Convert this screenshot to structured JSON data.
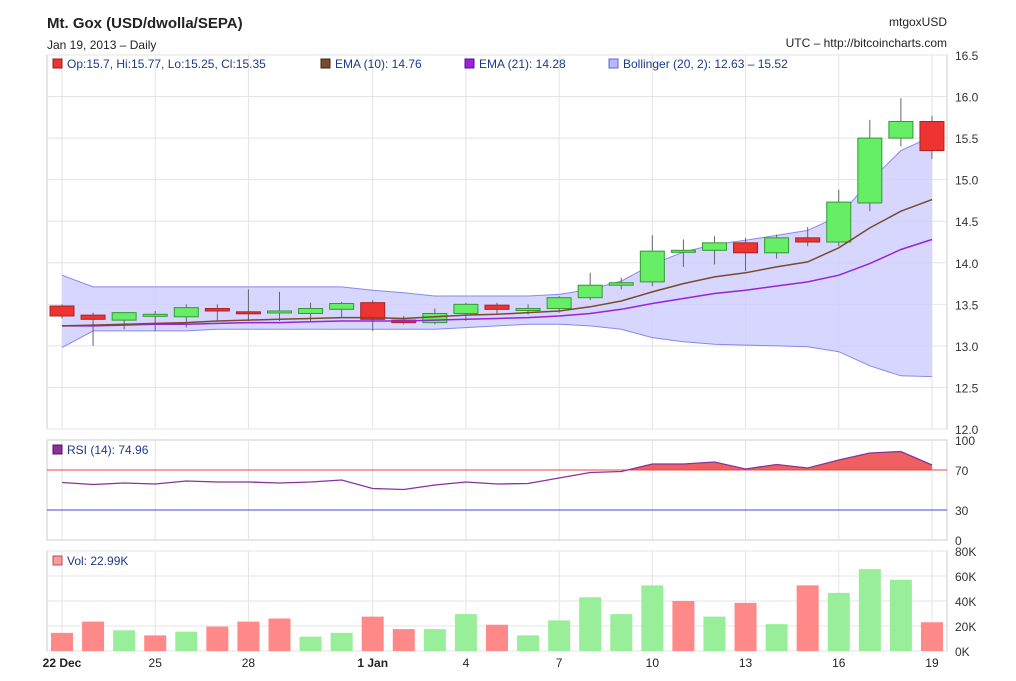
{
  "header": {
    "title": "Mt. Gox (USD/dwolla/SEPA)",
    "subtitle": "Jan 19, 2013 – Daily",
    "symbol": "mtgoxUSD",
    "source": "UTC – http://bitcoincharts.com"
  },
  "colors": {
    "up": "#66ee66",
    "down": "#ee3333",
    "ema10": "#7a4a2a",
    "ema21": "#9922dd",
    "bollinger_fill": "#ccccff",
    "bollinger_line": "#8888ee",
    "rsi_line": "#883399",
    "rsi_fill": "#ee4444",
    "rsi_70": "#ee4444",
    "rsi_30": "#4444dd",
    "vol_up": "#99ee99",
    "vol_down": "#ff8888",
    "grid": "#e4e4e4"
  },
  "chart_data": [
    {
      "type": "candlestick",
      "title": "Mt. Gox (USD/dwolla/SEPA)",
      "ylim": [
        12.0,
        16.5
      ],
      "yticks": [
        "12.0",
        "12.5",
        "13.0",
        "13.5",
        "14.0",
        "14.5",
        "15.0",
        "15.5",
        "16.0",
        "16.5"
      ],
      "x_tick_labels": [
        {
          "index": 0,
          "label": "22 Dec",
          "bold": true
        },
        {
          "index": 3,
          "label": "25",
          "bold": false
        },
        {
          "index": 6,
          "label": "28",
          "bold": false
        },
        {
          "index": 10,
          "label": "1 Jan",
          "bold": true
        },
        {
          "index": 13,
          "label": "4",
          "bold": false
        },
        {
          "index": 16,
          "label": "7",
          "bold": false
        },
        {
          "index": 19,
          "label": "10",
          "bold": false
        },
        {
          "index": 22,
          "label": "13",
          "bold": false
        },
        {
          "index": 25,
          "label": "16",
          "bold": false
        },
        {
          "index": 28,
          "label": "19",
          "bold": false
        }
      ],
      "legend": {
        "ohlc": "Op:15.7, Hi:15.77, Lo:15.25, Cl:15.35",
        "ema10": "EMA (10): 14.76",
        "ema21": "EMA (21): 14.28",
        "bollinger": "Bollinger (20, 2): 12.63 – 15.52"
      },
      "dates": [
        "2012-12-22",
        "2012-12-23",
        "2012-12-24",
        "2012-12-25",
        "2012-12-26",
        "2012-12-27",
        "2012-12-28",
        "2012-12-29",
        "2012-12-30",
        "2012-12-31",
        "2013-01-01",
        "2013-01-02",
        "2013-01-03",
        "2013-01-04",
        "2013-01-05",
        "2013-01-06",
        "2013-01-07",
        "2013-01-08",
        "2013-01-09",
        "2013-01-10",
        "2013-01-11",
        "2013-01-12",
        "2013-01-13",
        "2013-01-14",
        "2013-01-15",
        "2013-01-16",
        "2013-01-17",
        "2013-01-18",
        "2013-01-19"
      ],
      "ohlc": [
        [
          13.48,
          13.5,
          13.33,
          13.36
        ],
        [
          13.37,
          13.4,
          13.0,
          13.32
        ],
        [
          13.31,
          13.39,
          13.2,
          13.4
        ],
        [
          13.36,
          13.42,
          13.18,
          13.38
        ],
        [
          13.35,
          13.5,
          13.22,
          13.46
        ],
        [
          13.45,
          13.5,
          13.3,
          13.42
        ],
        [
          13.41,
          13.68,
          13.3,
          13.4
        ],
        [
          13.4,
          13.65,
          13.3,
          13.42
        ],
        [
          13.39,
          13.52,
          13.3,
          13.45
        ],
        [
          13.44,
          13.53,
          13.35,
          13.51
        ],
        [
          13.52,
          13.55,
          13.18,
          13.32
        ],
        [
          13.31,
          13.36,
          13.26,
          13.28
        ],
        [
          13.28,
          13.45,
          13.26,
          13.39
        ],
        [
          13.39,
          13.52,
          13.3,
          13.5
        ],
        [
          13.49,
          13.52,
          13.38,
          13.44
        ],
        [
          13.44,
          13.5,
          13.38,
          13.45
        ],
        [
          13.45,
          13.6,
          13.4,
          13.58
        ],
        [
          13.58,
          13.88,
          13.55,
          13.73
        ],
        [
          13.73,
          13.82,
          13.68,
          13.76
        ],
        [
          13.77,
          14.33,
          13.72,
          14.14
        ],
        [
          14.14,
          14.28,
          13.95,
          14.15
        ],
        [
          14.15,
          14.32,
          13.98,
          14.24
        ],
        [
          14.24,
          14.3,
          13.9,
          14.12
        ],
        [
          14.12,
          14.34,
          14.05,
          14.3
        ],
        [
          14.3,
          14.43,
          14.2,
          14.25
        ],
        [
          14.25,
          14.88,
          14.2,
          14.73
        ],
        [
          14.72,
          15.72,
          14.62,
          15.5
        ],
        [
          15.5,
          15.98,
          15.4,
          15.7
        ],
        [
          15.7,
          15.77,
          15.25,
          15.35
        ]
      ],
      "ema10": [
        13.24,
        13.25,
        13.26,
        13.27,
        13.28,
        13.3,
        13.31,
        13.32,
        13.33,
        13.34,
        13.34,
        13.33,
        13.35,
        13.37,
        13.38,
        13.4,
        13.42,
        13.47,
        13.54,
        13.65,
        13.75,
        13.83,
        13.88,
        13.95,
        14.01,
        14.18,
        14.42,
        14.62,
        14.76
      ],
      "ema21": [
        13.24,
        13.24,
        13.25,
        13.26,
        13.26,
        13.27,
        13.28,
        13.28,
        13.29,
        13.3,
        13.3,
        13.3,
        13.31,
        13.32,
        13.33,
        13.34,
        13.36,
        13.39,
        13.44,
        13.51,
        13.57,
        13.63,
        13.67,
        13.72,
        13.77,
        13.85,
        13.99,
        14.16,
        14.28
      ],
      "bollinger_upper": [
        13.85,
        13.71,
        13.71,
        13.71,
        13.71,
        13.71,
        13.71,
        13.71,
        13.71,
        13.71,
        13.67,
        13.64,
        13.6,
        13.6,
        13.6,
        13.6,
        13.62,
        13.68,
        13.78,
        13.98,
        14.13,
        14.22,
        14.27,
        14.33,
        14.39,
        14.56,
        14.98,
        15.35,
        15.52
      ],
      "bollinger_lower": [
        12.98,
        13.18,
        13.18,
        13.18,
        13.18,
        13.2,
        13.2,
        13.2,
        13.2,
        13.2,
        13.2,
        13.2,
        13.2,
        13.22,
        13.24,
        13.26,
        13.26,
        13.24,
        13.2,
        13.1,
        13.05,
        13.02,
        13.01,
        13.0,
        12.99,
        12.93,
        12.76,
        12.64,
        12.63
      ]
    },
    {
      "type": "line",
      "title": "RSI (14): 74.96",
      "ylim": [
        0,
        100
      ],
      "yticks": [
        "0",
        "30",
        "70",
        "100"
      ],
      "reference_lines": [
        70,
        30
      ],
      "values": [
        57.5,
        55.5,
        57.0,
        56.0,
        59.0,
        58.0,
        58.0,
        57.0,
        58.0,
        60.0,
        51.5,
        50.5,
        55.0,
        58.0,
        56.0,
        56.5,
        62.0,
        67.5,
        68.5,
        76.0,
        76.0,
        78.0,
        71.0,
        75.5,
        72.0,
        80.0,
        87.0,
        88.5,
        75.0
      ]
    },
    {
      "type": "bar",
      "title": "Vol: 22.99K",
      "ylim": [
        0,
        80
      ],
      "yunit": "K",
      "yticks": [
        "0K",
        "20K",
        "40K",
        "60K",
        "80K"
      ],
      "values": [
        14.5,
        23.5,
        16.5,
        12.5,
        15.5,
        19.5,
        23.5,
        26.0,
        11.5,
        14.5,
        27.5,
        17.5,
        17.5,
        29.5,
        21.0,
        12.5,
        24.5,
        43.0,
        29.5,
        52.5,
        40.0,
        27.5,
        38.5,
        21.5,
        52.5,
        46.5,
        65.5,
        57.0,
        23.0
      ],
      "up": [
        false,
        false,
        true,
        false,
        true,
        false,
        false,
        false,
        true,
        true,
        false,
        false,
        true,
        true,
        false,
        true,
        true,
        true,
        true,
        true,
        false,
        true,
        false,
        true,
        false,
        true,
        true,
        true,
        false
      ]
    }
  ]
}
